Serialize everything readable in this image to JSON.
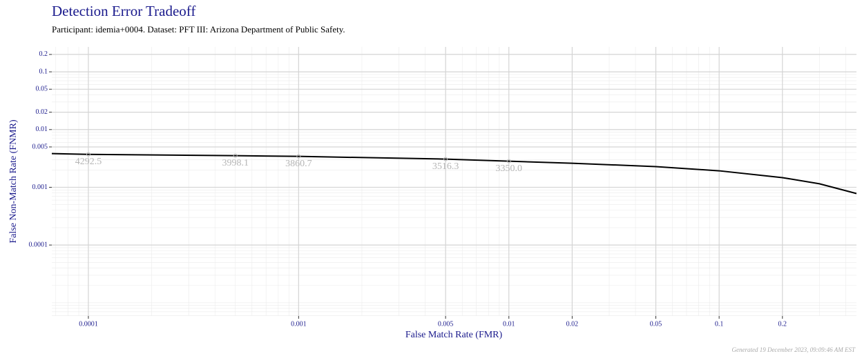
{
  "chart_data": {
    "type": "line",
    "title": "Detection Error Tradeoff",
    "subtitle": "Participant: idemia+0004. Dataset: PFT III: Arizona Department of Public Safety.",
    "x_label": "False Match Rate (FMR)",
    "y_label": "False Non-Match Rate (FNMR)",
    "footer": "Generated 19 December 2023, 09:09:46 AM EST",
    "x_scale": "log",
    "y_scale": "log",
    "grid": true,
    "color": "#000000",
    "x": [
      6.7e-05,
      0.0001,
      0.0005,
      0.001,
      0.005,
      0.01,
      0.02,
      0.05,
      0.1,
      0.2,
      0.3,
      0.45
    ],
    "values": [
      0.00383,
      0.00372,
      0.00353,
      0.00343,
      0.00308,
      0.00283,
      0.00261,
      0.00228,
      0.00193,
      0.00147,
      0.00115,
      0.00078
    ],
    "xlim": [
      6.7e-05,
      0.45
    ],
    "ylim": [
      5.9e-06,
      0.27
    ],
    "xticks": [
      0.0001,
      0.001,
      0.005,
      0.01,
      0.02,
      0.05,
      0.1,
      0.2
    ],
    "yticks": [
      0.0001,
      0.001,
      0.005,
      0.01,
      0.02,
      0.05,
      0.1,
      0.2
    ],
    "annotations": [
      {
        "x": 0.0001,
        "y": 0.00372,
        "label": "4292.5"
      },
      {
        "x": 0.0005,
        "y": 0.00353,
        "label": "3998.1"
      },
      {
        "x": 0.001,
        "y": 0.00343,
        "label": "3860.7"
      },
      {
        "x": 0.005,
        "y": 0.00308,
        "label": "3516.3"
      },
      {
        "x": 0.01,
        "y": 0.00283,
        "label": "3350.0"
      }
    ]
  }
}
